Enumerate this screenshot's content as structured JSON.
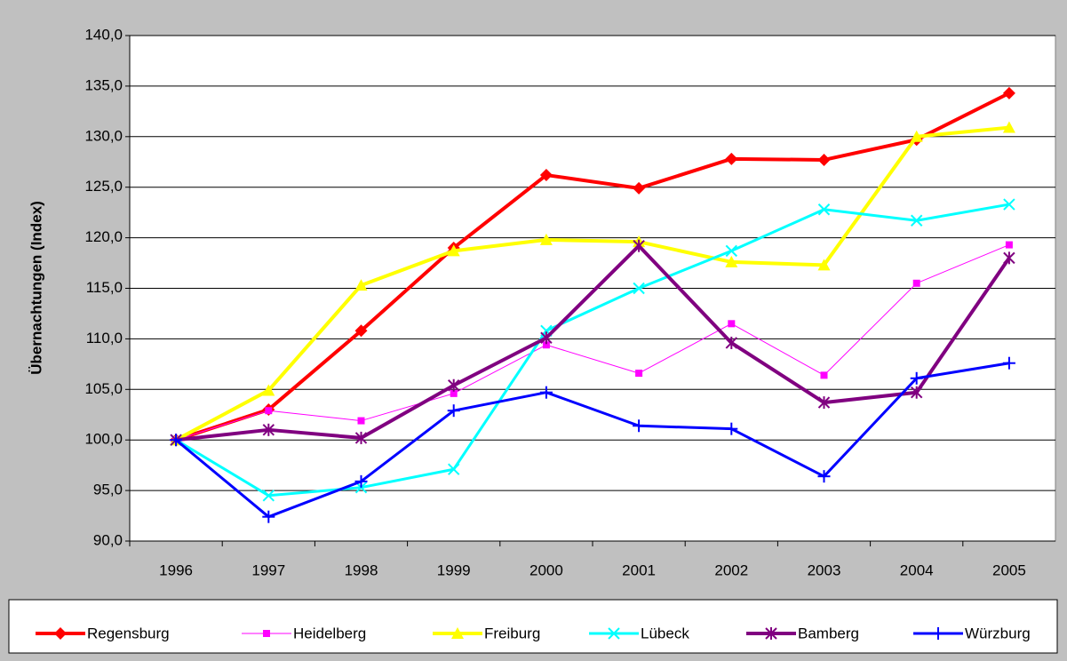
{
  "chart_data": {
    "type": "line",
    "y_label": "Übernachtungen (Index)",
    "categories": [
      "1996",
      "1997",
      "1998",
      "1999",
      "2000",
      "2001",
      "2002",
      "2003",
      "2004",
      "2005"
    ],
    "ylim": [
      90,
      140
    ],
    "yticks": [
      {
        "value": 90,
        "label": "90,0"
      },
      {
        "value": 95,
        "label": "95,0"
      },
      {
        "value": 100,
        "label": "100,0"
      },
      {
        "value": 105,
        "label": "105,0"
      },
      {
        "value": 110,
        "label": "110,0"
      },
      {
        "value": 115,
        "label": "115,0"
      },
      {
        "value": 120,
        "label": "120,0"
      },
      {
        "value": 125,
        "label": "125,0"
      },
      {
        "value": 130,
        "label": "130,0"
      },
      {
        "value": 135,
        "label": "135,0"
      },
      {
        "value": 140,
        "label": "140,0"
      }
    ],
    "grid": true,
    "legend": "bottom",
    "series": [
      {
        "name": "Regensburg",
        "color": "#ff0000",
        "marker": "diamond",
        "line_width": 4,
        "values": [
          100,
          103.0,
          110.8,
          119.0,
          126.2,
          124.9,
          127.8,
          127.7,
          129.7,
          134.3
        ]
      },
      {
        "name": "Heidelberg",
        "color": "#ff00ff",
        "marker": "square",
        "line_width": 1,
        "values": [
          100,
          102.9,
          101.9,
          104.6,
          109.4,
          106.6,
          111.5,
          106.4,
          115.5,
          119.3
        ]
      },
      {
        "name": "Freiburg",
        "color": "#ffff00",
        "marker": "triangle",
        "line_width": 4,
        "values": [
          100,
          104.9,
          115.3,
          118.7,
          119.8,
          119.6,
          117.6,
          117.3,
          130.0,
          130.9
        ]
      },
      {
        "name": "Lübeck",
        "color": "#00ffff",
        "marker": "x",
        "line_width": 3,
        "values": [
          100,
          94.5,
          95.3,
          97.1,
          110.8,
          115.0,
          118.7,
          122.8,
          121.7,
          123.3
        ]
      },
      {
        "name": "Bamberg",
        "color": "#800080",
        "marker": "asterisk",
        "line_width": 4,
        "values": [
          100,
          101.0,
          100.2,
          105.4,
          110.1,
          119.2,
          109.6,
          103.7,
          104.7,
          118.0
        ]
      },
      {
        "name": "Würzburg",
        "color": "#0000ff",
        "marker": "plus",
        "line_width": 3,
        "values": [
          100,
          92.4,
          95.9,
          102.9,
          104.7,
          101.4,
          101.1,
          96.4,
          106.1,
          107.6
        ]
      }
    ]
  }
}
